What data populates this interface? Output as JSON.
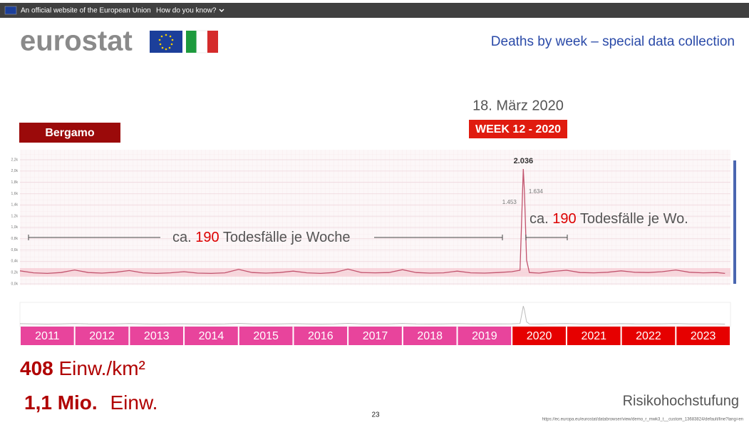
{
  "banner": {
    "text": "An official website of the European Union",
    "link": "How do you know?"
  },
  "header": {
    "logo": "eurostat",
    "title": "Deaths by week – special data collection"
  },
  "slide": {
    "date": "18. März 2020",
    "week": "WEEK 12 - 2020",
    "region": "Bergamo",
    "note_left": {
      "prefix": "ca.",
      "number": "190",
      "suffix": "Todesfälle je Woche"
    },
    "note_right": {
      "prefix": "ca.",
      "number": "190",
      "suffix": "Todesfälle je Wo."
    },
    "density": {
      "number": "408",
      "unit": "Einw./km²"
    },
    "population": {
      "number": "1,1 Mio.",
      "unit": "Einw."
    },
    "risk": "Risikohochstufung",
    "page": "23",
    "source": "https://ec.europa.eu/eurostat/databrowser/view/demo_r_mwk3_t__custom_13683824/default/line?lang=en"
  },
  "chart_data": {
    "type": "line",
    "x": [
      2011,
      2011.25,
      2011.5,
      2011.75,
      2012,
      2012.25,
      2012.5,
      2012.75,
      2013,
      2013.25,
      2013.5,
      2013.75,
      2014,
      2014.25,
      2014.5,
      2014.75,
      2015,
      2015.25,
      2015.5,
      2015.75,
      2016,
      2016.25,
      2016.5,
      2016.75,
      2017,
      2017.25,
      2017.5,
      2017.75,
      2018,
      2018.25,
      2018.5,
      2018.75,
      2019,
      2019.25,
      2019.5,
      2019.75,
      2020,
      2020.15,
      2020.19,
      2020.21,
      2020.23,
      2020.27,
      2020.32,
      2020.5,
      2020.75,
      2021,
      2021.25,
      2021.5,
      2021.75,
      2022,
      2022.25,
      2022.5,
      2022.75,
      2023,
      2023.25,
      2023.5,
      2023.75,
      2023.9
    ],
    "series": [
      {
        "color": "#c2546e",
        "values": [
          230,
          195,
          185,
          200,
          245,
          200,
          190,
          205,
          235,
          195,
          185,
          195,
          215,
          190,
          185,
          195,
          255,
          200,
          190,
          200,
          225,
          195,
          185,
          200,
          260,
          200,
          195,
          200,
          250,
          200,
          190,
          195,
          225,
          195,
          190,
          200,
          215,
          240,
          1453,
          2036,
          1634,
          420,
          200,
          190,
          220,
          240,
          200,
          195,
          205,
          230,
          205,
          200,
          215,
          245,
          205,
          195,
          200,
          185
        ],
        "value_labels": [
          null,
          null,
          null,
          null,
          null,
          null,
          null,
          null,
          null,
          null,
          null,
          null,
          null,
          null,
          null,
          null,
          null,
          null,
          null,
          null,
          null,
          null,
          null,
          null,
          null,
          null,
          null,
          null,
          null,
          null,
          null,
          null,
          null,
          null,
          null,
          null,
          null,
          null,
          "1.453",
          "2.036",
          "1.634",
          null,
          null,
          null,
          null,
          null,
          null,
          null,
          null,
          null,
          null,
          null,
          null,
          null,
          null,
          null,
          null,
          null
        ]
      }
    ],
    "xlim": [
      2011,
      2024
    ],
    "ylim": [
      0,
      2200
    ],
    "yticks": [
      {
        "value": 0,
        "label": "0,0k"
      },
      {
        "value": 200,
        "label": "0,2k"
      },
      {
        "value": 400,
        "label": "0,4k"
      },
      {
        "value": 600,
        "label": "0,6k"
      },
      {
        "value": 800,
        "label": "0,8k"
      },
      {
        "value": 1000,
        "label": "1,0k"
      },
      {
        "value": 1200,
        "label": "1,2k"
      },
      {
        "value": 1400,
        "label": "1,4k"
      },
      {
        "value": 1600,
        "label": "1,6k"
      },
      {
        "value": 1800,
        "label": "1,8k"
      },
      {
        "value": 2000,
        "label": "2,0k"
      },
      {
        "value": 2200,
        "label": "2,2k"
      }
    ],
    "categories": [
      "2011",
      "2012",
      "2013",
      "2014",
      "2015",
      "2016",
      "2017",
      "2018",
      "2019",
      "2020",
      "2021",
      "2022",
      "2023"
    ],
    "category_colors": [
      "#e8449c",
      "#e8449c",
      "#e8449c",
      "#e8449c",
      "#e8449c",
      "#e8449c",
      "#e8449c",
      "#e8449c",
      "#e8449c",
      "#e60000",
      "#e60000",
      "#e60000",
      "#e60000"
    ],
    "grid": true
  }
}
